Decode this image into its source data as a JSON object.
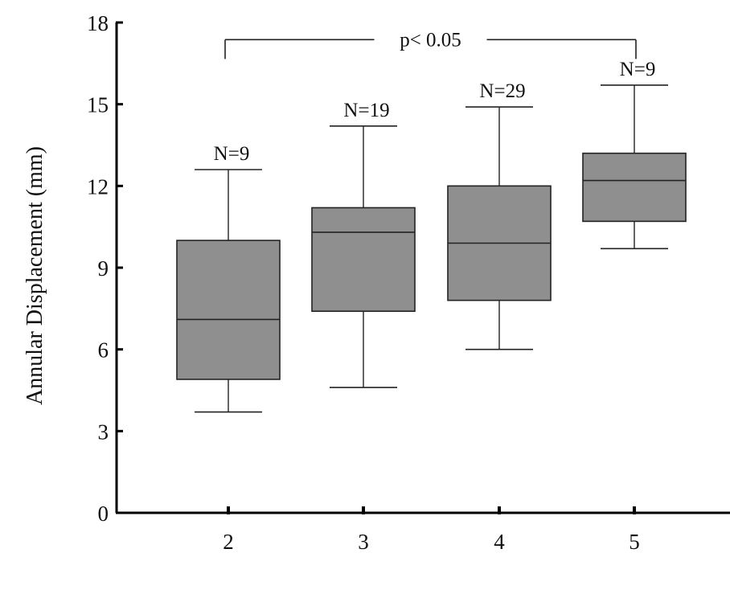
{
  "chart_data": {
    "type": "box",
    "title": "",
    "xlabel": "",
    "ylabel": "Annular Displacement (mm)",
    "ylim": [
      0,
      18
    ],
    "yticks": [
      0,
      3,
      6,
      9,
      12,
      15,
      18
    ],
    "categories": [
      "2",
      "3",
      "4",
      "5"
    ],
    "boxes": [
      {
        "category": "2",
        "n_label": "N=9",
        "min": 3.7,
        "q1": 4.9,
        "median": 7.1,
        "q3": 10.0,
        "max": 12.6
      },
      {
        "category": "3",
        "n_label": "N=19",
        "min": 4.6,
        "q1": 7.4,
        "median": 10.3,
        "q3": 11.2,
        "max": 14.2
      },
      {
        "category": "4",
        "n_label": "N=29",
        "min": 6.0,
        "q1": 7.8,
        "median": 9.9,
        "q3": 12.0,
        "max": 14.9
      },
      {
        "category": "5",
        "n_label": "N=9",
        "min": 9.7,
        "q1": 10.7,
        "median": 12.2,
        "q3": 13.2,
        "max": 15.7
      }
    ],
    "significance": {
      "from": "2",
      "to": "5",
      "label": "p< 0.05",
      "y": 17.4
    },
    "colors": {
      "box_fill": "#8f8f8f",
      "stroke": "#222222",
      "axis": "#000000"
    },
    "grid": false,
    "legend": "none"
  }
}
